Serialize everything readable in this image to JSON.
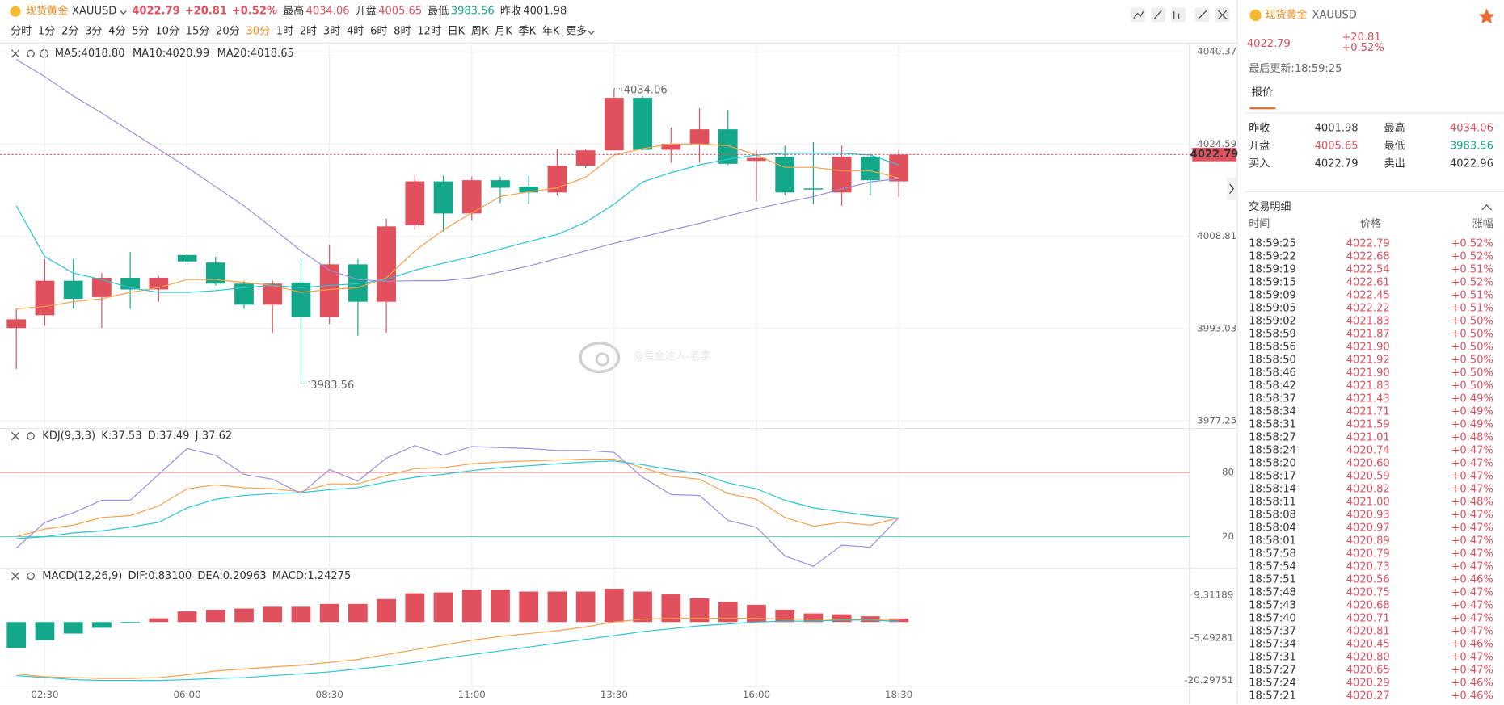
{
  "header": {
    "name": "现货黄金",
    "symbol": "XAUUSD",
    "price": "4022.79",
    "change": "+20.81",
    "change_pct": "+0.52%",
    "stats": [
      {
        "label": "最高",
        "value": "4034.06"
      },
      {
        "label": "开盘",
        "value": "4005.65"
      },
      {
        "label": "最低",
        "value": "3983.56"
      },
      {
        "label": "昨收",
        "value": "4001.98"
      }
    ]
  },
  "periods": [
    "分时",
    "1分",
    "2分",
    "3分",
    "4分",
    "5分",
    "10分",
    "15分",
    "20分",
    "30分",
    "1时",
    "2时",
    "3时",
    "4时",
    "6时",
    "8时",
    "12时",
    "日K",
    "周K",
    "月K",
    "季K",
    "年K",
    "更多"
  ],
  "active_period": "30分",
  "main_chart": {
    "type": "candlestick",
    "categories": [
      null,
      "02:30",
      null,
      null,
      null,
      null,
      "06:00",
      null,
      null,
      null,
      null,
      "08:30",
      null,
      null,
      null,
      null,
      "11:00",
      null,
      null,
      null,
      null,
      "13:30",
      null,
      null,
      null,
      null,
      "16:00",
      null,
      null,
      null,
      null,
      "18:30"
    ],
    "candles": [
      {
        "open": 3993.1,
        "high": 3996.4,
        "low": 3986.1,
        "close": 3994.6
      },
      {
        "open": 3995.3,
        "high": 4004.9,
        "low": 3993.5,
        "close": 4001.2
      },
      {
        "open": 4001.2,
        "high": 4004.9,
        "low": 3996.4,
        "close": 3998.1
      },
      {
        "open": 3998.4,
        "high": 4002.5,
        "low": 3993.1,
        "close": 4001.7
      },
      {
        "open": 4001.7,
        "high": 4006.1,
        "low": 3996.4,
        "close": 3999.7
      },
      {
        "open": 3999.7,
        "high": 4002.0,
        "low": 3997.6,
        "close": 4001.7
      },
      {
        "open": 4005.6,
        "high": 4005.8,
        "low": 4003.9,
        "close": 4004.5
      },
      {
        "open": 4004.3,
        "high": 4005.3,
        "low": 4000.4,
        "close": 4000.7
      },
      {
        "open": 4000.7,
        "high": 4001.2,
        "low": 3996.4,
        "close": 3997.1
      },
      {
        "open": 3997.1,
        "high": 4001.2,
        "low": 3992.3,
        "close": 4000.7
      },
      {
        "open": 4000.9,
        "high": 4004.8,
        "low": 3983.56,
        "close": 3995.0
      },
      {
        "open": 3995.0,
        "high": 4007.3,
        "low": 3993.8,
        "close": 4004.0
      },
      {
        "open": 4004.0,
        "high": 4004.9,
        "low": 3991.8,
        "close": 3997.6
      },
      {
        "open": 3997.6,
        "high": 4011.8,
        "low": 3992.3,
        "close": 4010.5
      },
      {
        "open": 4010.7,
        "high": 4019.2,
        "low": 4009.9,
        "close": 4018.2
      },
      {
        "open": 4018.2,
        "high": 4019.2,
        "low": 4009.6,
        "close": 4012.7
      },
      {
        "open": 4012.7,
        "high": 4019.0,
        "low": 4011.5,
        "close": 4018.4
      },
      {
        "open": 4018.4,
        "high": 4019.0,
        "low": 4014.5,
        "close": 4017.1
      },
      {
        "open": 4017.3,
        "high": 4019.2,
        "low": 4014.3,
        "close": 4016.3
      },
      {
        "open": 4016.3,
        "high": 4023.8,
        "low": 4015.8,
        "close": 4020.9
      },
      {
        "open": 4020.9,
        "high": 4023.8,
        "low": 4020.5,
        "close": 4023.5
      },
      {
        "open": 4023.5,
        "high": 4034.06,
        "low": 4023.5,
        "close": 4032.5
      },
      {
        "open": 4032.5,
        "high": 4032.8,
        "low": 4023.5,
        "close": 4023.6
      },
      {
        "open": 4023.6,
        "high": 4027.4,
        "low": 4021.4,
        "close": 4024.6
      },
      {
        "open": 4024.6,
        "high": 4030.7,
        "low": 4021.4,
        "close": 4027.1
      },
      {
        "open": 4027.1,
        "high": 4030.4,
        "low": 4021.0,
        "close": 4021.2
      },
      {
        "open": 4021.7,
        "high": 4023.5,
        "low": 4014.8,
        "close": 4022.2
      },
      {
        "open": 4022.4,
        "high": 4024.3,
        "low": 4015.8,
        "close": 4016.3
      },
      {
        "open": 4017.0,
        "high": 4024.9,
        "low": 4014.3,
        "close": 4016.8
      },
      {
        "open": 4016.3,
        "high": 4024.3,
        "low": 4014.0,
        "close": 4022.4
      },
      {
        "open": 4022.4,
        "high": 4023.0,
        "low": 4015.8,
        "close": 4018.4
      },
      {
        "open": 4018.2,
        "high": 4023.5,
        "low": 4015.5,
        "close": 4022.79
      }
    ],
    "up_color": "#e0505d",
    "down_color": "#14a88b",
    "ylim": [
      3977.25,
      4040.37
    ],
    "yticks": [
      4040.37,
      4024.59,
      4008.81,
      3993.03,
      3977.25
    ],
    "ma": [
      {
        "name": "MA5:4018.80",
        "color": "#f5a04a",
        "values": [
          3996.4,
          3996.8,
          3997.6,
          3998.1,
          3999.2,
          4000.0,
          4001.4,
          4001.4,
          4000.9,
          4000.4,
          3999.2,
          3999.7,
          4000.0,
          4001.7,
          4006.3,
          4009.9,
          4012.8,
          4015.6,
          4016.4,
          4017.1,
          4018.9,
          4022.7,
          4023.8,
          4024.6,
          4024.6,
          4024.3,
          4022.7,
          4020.6,
          4020.6,
          4020.0,
          4020.0,
          4018.8
        ]
      },
      {
        "name": "MA10:4020.99",
        "color": "#26c4d6",
        "values": [
          4014.0,
          4005.3,
          4002.5,
          4001.4,
          4000.0,
          3999.2,
          3999.2,
          3999.5,
          4000.0,
          4000.4,
          4000.0,
          4000.4,
          4000.7,
          4001.4,
          4003.0,
          4004.2,
          4005.3,
          4006.6,
          4007.9,
          4009.1,
          4011.2,
          4014.3,
          4018.1,
          4019.7,
          4021.0,
          4022.0,
          4022.7,
          4023.0,
          4023.0,
          4023.0,
          4022.7,
          4020.99
        ]
      },
      {
        "name": "MA20:4018.65",
        "color": "#9b8ce0",
        "values": [
          4039.06,
          4036.1,
          4032.8,
          4029.9,
          4026.8,
          4023.7,
          4020.6,
          4017.3,
          4014.0,
          4010.2,
          4006.3,
          4003.0,
          4001.4,
          4001.1,
          4001.2,
          4001.2,
          4001.7,
          4002.7,
          4003.7,
          4005.0,
          4006.3,
          4007.6,
          4008.7,
          4009.9,
          4011.0,
          4012.3,
          4013.5,
          4014.6,
          4015.6,
          4016.9,
          4018.1,
          4018.65
        ]
      }
    ],
    "annotations": [
      {
        "label": "4034.06",
        "value": 4034.06
      },
      {
        "label": "3983.56",
        "value": 3983.56
      }
    ],
    "last_price": {
      "value": 4022.79,
      "label": "4022.79"
    },
    "watermark": "@黄金达人-老李"
  },
  "kdj_chart": {
    "type": "line",
    "title": "KDJ(9,3,3)",
    "ylim": [
      -10,
      120
    ],
    "yticks": [
      80,
      20
    ],
    "series": [
      {
        "name": "K:37.53",
        "color": "#f5a04a",
        "values": [
          20.0,
          27.2,
          30.8,
          37.9,
          39.7,
          48.7,
          64.8,
          68.4,
          65.7,
          64.8,
          62.1,
          69.3,
          69.3,
          77.3,
          83.6,
          84.5,
          88.1,
          89.8,
          90.7,
          91.6,
          92.5,
          92.5,
          84.5,
          76.4,
          73.7,
          60.3,
          54.9,
          37.9,
          29.8,
          33.4,
          30.8,
          37.53
        ]
      },
      {
        "name": "D:37.49",
        "color": "#26c4d6",
        "values": [
          18.2,
          20.0,
          23.6,
          25.4,
          29.0,
          33.4,
          46.9,
          54.9,
          58.5,
          60.3,
          61.2,
          63.9,
          65.7,
          71.0,
          75.5,
          78.2,
          81.8,
          84.5,
          86.3,
          88.1,
          89.8,
          90.7,
          87.2,
          82.7,
          79.1,
          70.2,
          64.8,
          54.0,
          46.9,
          43.3,
          39.7,
          37.49
        ]
      },
      {
        "name": "J:37.62",
        "color": "#9b8ce0",
        "values": [
          9.3,
          33.4,
          42.4,
          54.0,
          54.0,
          78.2,
          102.4,
          96.1,
          78.2,
          73.7,
          60.3,
          82.7,
          71.9,
          93.4,
          105.1,
          96.1,
          104.2,
          103.3,
          102.4,
          100.6,
          100.6,
          98.8,
          75.5,
          59.4,
          58.5,
          35.2,
          28.9,
          2.1,
          -7.7,
          12.0,
          10.2,
          37.62
        ]
      }
    ]
  },
  "macd_chart": {
    "type": "bar",
    "title": "MACD(12,26,9)",
    "ylim": [
      -22.3,
      18
    ],
    "yticks": [
      9.31189,
      -5.49281,
      -20.29751
    ],
    "histogram": {
      "name": "MACD:1.24275",
      "values": [
        -9.0,
        -6.3,
        -4.0,
        -2.0,
        -0.3,
        1.3,
        3.7,
        4.3,
        4.7,
        5.3,
        5.3,
        6.3,
        6.3,
        8.0,
        10.0,
        10.3,
        11.3,
        11.3,
        10.6,
        10.6,
        10.6,
        11.6,
        10.6,
        9.6,
        8.3,
        7.0,
        6.0,
        4.3,
        3.0,
        2.7,
        2.0,
        1.24275
      ]
    },
    "series": [
      {
        "name": "DIF:0.83100",
        "color": "#f5a04a",
        "values": [
          -18.0,
          -19.0,
          -19.3,
          -19.6,
          -19.6,
          -19.3,
          -18.3,
          -17.0,
          -16.3,
          -15.6,
          -15.0,
          -14.0,
          -13.0,
          -11.3,
          -9.6,
          -8.0,
          -6.3,
          -5.0,
          -4.0,
          -3.0,
          -1.7,
          0.0,
          1.0,
          1.3,
          1.3,
          1.3,
          1.3,
          1.0,
          1.0,
          1.0,
          1.0,
          0.831
        ]
      },
      {
        "name": "DEA:0.20963",
        "color": "#26c4d6",
        "values": [
          -18.6,
          -19.3,
          -20.0,
          -20.3,
          -20.3,
          -20.3,
          -20.0,
          -19.6,
          -19.3,
          -18.6,
          -18.0,
          -17.3,
          -16.3,
          -15.3,
          -14.0,
          -12.6,
          -11.3,
          -10.0,
          -8.7,
          -7.3,
          -6.0,
          -4.7,
          -3.3,
          -2.3,
          -1.3,
          -0.7,
          0.0,
          0.3,
          0.3,
          0.7,
          0.7,
          0.20963
        ]
      }
    ]
  },
  "quote_panel": {
    "name": "现货黄金",
    "symbol": "XAUUSD",
    "price": "4022.79",
    "change": "+20.81",
    "change_pct": "+0.52%",
    "updated": "最后更新:18:59:25",
    "tab": "报价",
    "rows": [
      [
        {
          "label": "昨收",
          "value": "4001.98"
        },
        {
          "label": "最高",
          "value": "4034.06"
        }
      ],
      [
        {
          "label": "开盘",
          "value": "4005.65"
        },
        {
          "label": "最低",
          "value": "3983.56"
        }
      ],
      [
        {
          "label": "买入",
          "value": "4022.79"
        },
        {
          "label": "卖出",
          "value": "4022.96"
        }
      ]
    ]
  },
  "trades": {
    "title": "交易明细",
    "columns": [
      "时间",
      "价格",
      "涨幅"
    ],
    "rows": [
      [
        "18:59:25",
        "4022.79",
        "+0.52%"
      ],
      [
        "18:59:22",
        "4022.68",
        "+0.52%"
      ],
      [
        "18:59:19",
        "4022.54",
        "+0.51%"
      ],
      [
        "18:59:15",
        "4022.61",
        "+0.52%"
      ],
      [
        "18:59:09",
        "4022.45",
        "+0.51%"
      ],
      [
        "18:59:05",
        "4022.22",
        "+0.51%"
      ],
      [
        "18:59:02",
        "4021.83",
        "+0.50%"
      ],
      [
        "18:58:59",
        "4021.87",
        "+0.50%"
      ],
      [
        "18:58:56",
        "4021.90",
        "+0.50%"
      ],
      [
        "18:58:50",
        "4021.92",
        "+0.50%"
      ],
      [
        "18:58:46",
        "4021.90",
        "+0.50%"
      ],
      [
        "18:58:42",
        "4021.83",
        "+0.50%"
      ],
      [
        "18:58:37",
        "4021.43",
        "+0.49%"
      ],
      [
        "18:58:34",
        "4021.71",
        "+0.49%"
      ],
      [
        "18:58:31",
        "4021.59",
        "+0.49%"
      ],
      [
        "18:58:27",
        "4021.01",
        "+0.48%"
      ],
      [
        "18:58:24",
        "4020.74",
        "+0.47%"
      ],
      [
        "18:58:20",
        "4020.60",
        "+0.47%"
      ],
      [
        "18:58:17",
        "4020.59",
        "+0.47%"
      ],
      [
        "18:58:14",
        "4020.82",
        "+0.47%"
      ],
      [
        "18:58:11",
        "4021.00",
        "+0.48%"
      ],
      [
        "18:58:08",
        "4020.93",
        "+0.47%"
      ],
      [
        "18:58:04",
        "4020.97",
        "+0.47%"
      ],
      [
        "18:58:01",
        "4020.89",
        "+0.47%"
      ],
      [
        "18:57:58",
        "4020.79",
        "+0.47%"
      ],
      [
        "18:57:54",
        "4020.73",
        "+0.47%"
      ],
      [
        "18:57:51",
        "4020.56",
        "+0.46%"
      ],
      [
        "18:57:48",
        "4020.75",
        "+0.47%"
      ],
      [
        "18:57:43",
        "4020.68",
        "+0.47%"
      ],
      [
        "18:57:40",
        "4020.71",
        "+0.47%"
      ],
      [
        "18:57:37",
        "4020.81",
        "+0.47%"
      ],
      [
        "18:57:34",
        "4020.45",
        "+0.46%"
      ],
      [
        "18:57:31",
        "4020.80",
        "+0.47%"
      ],
      [
        "18:57:27",
        "4020.65",
        "+0.47%"
      ],
      [
        "18:57:24",
        "4020.29",
        "+0.46%"
      ],
      [
        "18:57:21",
        "4020.27",
        "+0.46%"
      ]
    ]
  }
}
